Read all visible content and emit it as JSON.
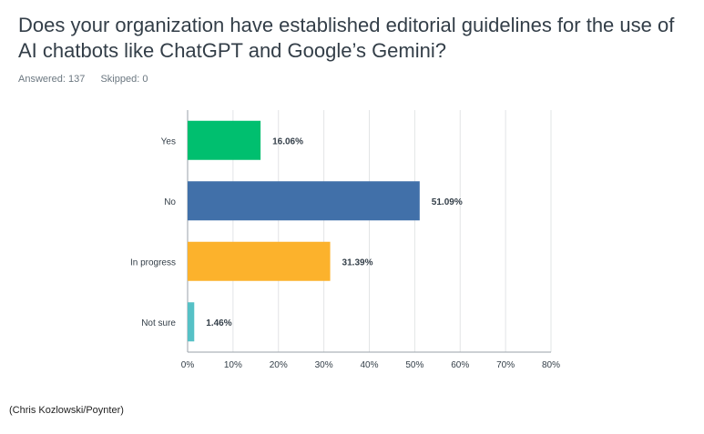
{
  "question": "Does your organization have established editorial guidelines for the use of AI chatbots like ChatGPT and Google’s Gemini?",
  "stats": {
    "answered": "Answered: 137",
    "skipped": "Skipped: 0"
  },
  "credit": "(Chris Kozlowski/Poynter)",
  "chart_data": {
    "type": "bar",
    "orientation": "horizontal",
    "categories": [
      "Yes",
      "No",
      "In progress",
      "Not sure"
    ],
    "values": [
      16.06,
      51.09,
      31.39,
      1.46
    ],
    "value_labels": [
      "16.06%",
      "51.09%",
      "31.39%",
      "1.46%"
    ],
    "colors": [
      "#00bf6f",
      "#4170a9",
      "#fcb22c",
      "#56c1c6"
    ],
    "xlim": [
      0,
      80
    ],
    "xticks": [
      0,
      10,
      20,
      30,
      40,
      50,
      60,
      70,
      80
    ],
    "xtick_labels": [
      "0%",
      "10%",
      "20%",
      "30%",
      "40%",
      "50%",
      "60%",
      "70%",
      "80%"
    ],
    "grid": true,
    "title": "",
    "xlabel": "",
    "ylabel": ""
  }
}
